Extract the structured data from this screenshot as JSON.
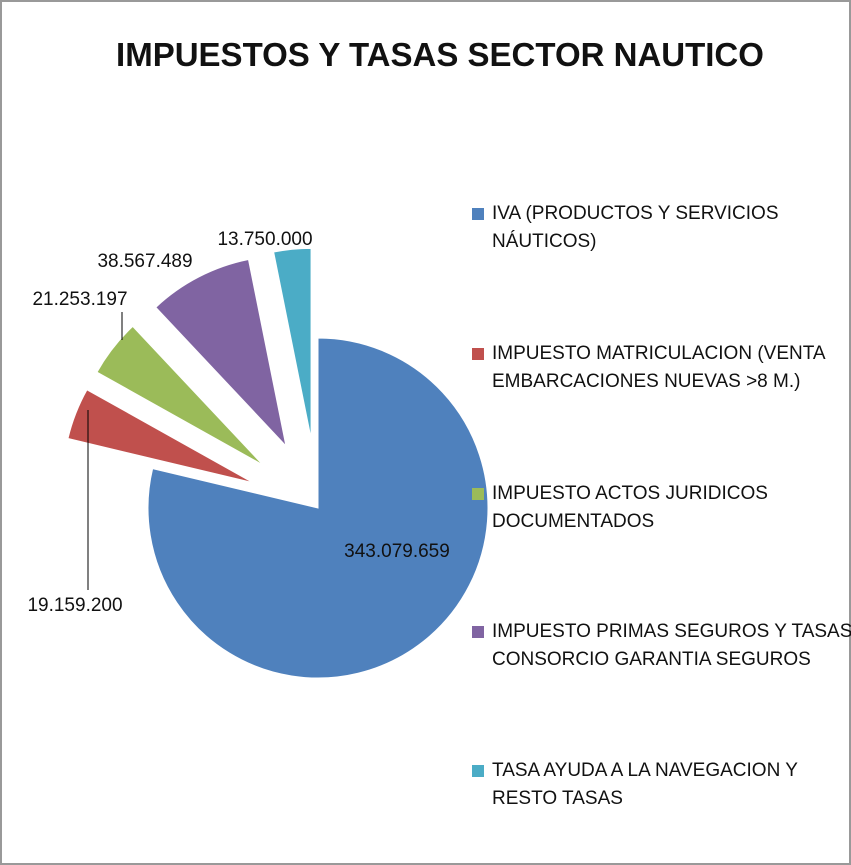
{
  "chart_data": {
    "type": "pie",
    "title": "IMPUESTOS Y TASAS SECTOR NAUTICO",
    "categories": [
      "IVA (PRODUCTOS Y SERVICIOS NÁUTICOS)",
      "IMPUESTO MATRICULACION (VENTA EMBARCACIONES NUEVAS >8 M.)",
      "IMPUESTO ACTOS JURIDICOS DOCUMENTADOS",
      "IMPUESTO PRIMAS SEGUROS Y TASAS CONSORCIO GARANTIA SEGUROS",
      "TASA AYUDA A LA NAVEGACION Y RESTO TASAS"
    ],
    "values": [
      343079659,
      19159200,
      21253197,
      38567489,
      13750000
    ],
    "value_labels": [
      "343.079.659",
      "19.159.200",
      "21.253.197",
      "38.567.489",
      "13.750.000"
    ],
    "colors": [
      "#4f81bd",
      "#c0504d",
      "#9bbb59",
      "#8064a2",
      "#4bacc6"
    ],
    "legend": "right"
  }
}
